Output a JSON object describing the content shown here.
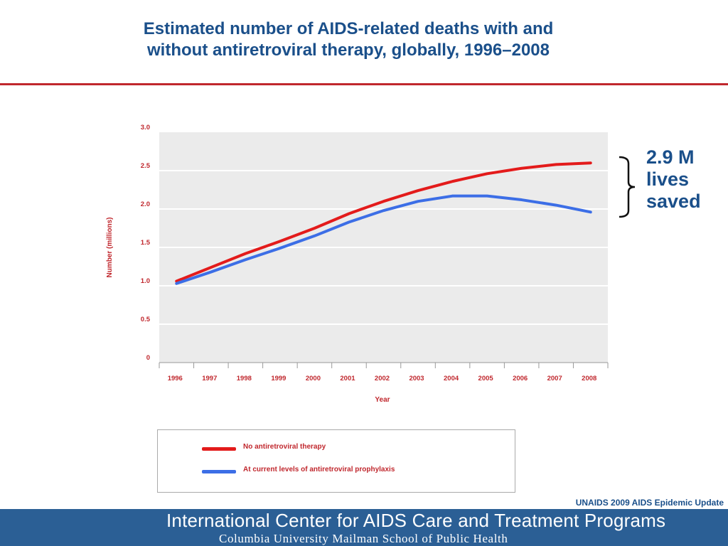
{
  "title": {
    "line1": "Estimated number of AIDS-related deaths with and",
    "line2": "without antiretroviral therapy, globally, 1996–2008"
  },
  "annotation": {
    "line1": "2.9 M",
    "line2": "lives",
    "line3": "saved"
  },
  "source": "UNAIDS 2009 AIDS Epidemic Update",
  "footer": {
    "line1": "International Center for AIDS Care and Treatment Programs",
    "line2": "Columbia University Mailman School of Public Health"
  },
  "colors": {
    "title": "#1a4f8a",
    "accent_red": "#c0272d",
    "series_red": "#e31b1b",
    "series_blue": "#3c6ee6",
    "plot_bg": "#ebebeb",
    "footer_bg": "#2b5f95"
  },
  "chart_data": {
    "type": "line",
    "xlabel": "Year",
    "ylabel": "Number (millions)",
    "ylim": [
      0,
      3.0
    ],
    "yticks": [
      "0",
      "0.5",
      "1.0",
      "1.5",
      "2.0",
      "2.5",
      "3.0"
    ],
    "grid": true,
    "legend_position": "bottom",
    "categories": [
      "1996",
      "1997",
      "1998",
      "1999",
      "2000",
      "2001",
      "2002",
      "2003",
      "2004",
      "2005",
      "2006",
      "2007",
      "2008"
    ],
    "series": [
      {
        "name": "No antiretroviral therapy",
        "color": "#e31b1b",
        "values": [
          1.06,
          1.24,
          1.42,
          1.58,
          1.75,
          1.94,
          2.1,
          2.24,
          2.36,
          2.46,
          2.53,
          2.58,
          2.6
        ]
      },
      {
        "name": "At current levels of antiretroviral prophylaxis",
        "color": "#3c6ee6",
        "values": [
          1.03,
          1.18,
          1.34,
          1.49,
          1.65,
          1.83,
          1.98,
          2.1,
          2.17,
          2.17,
          2.12,
          2.05,
          1.96
        ]
      }
    ]
  }
}
